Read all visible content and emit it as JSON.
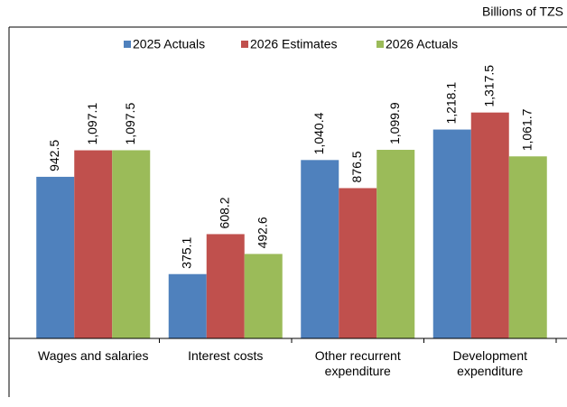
{
  "chart_data": {
    "type": "bar",
    "unit_label": "Billions of TZS",
    "categories": [
      "Wages and salaries",
      "Interest costs",
      "Other recurrent expenditure",
      "Development expenditure"
    ],
    "series": [
      {
        "name": "2025 Actuals",
        "color": "#4f81bd",
        "values": [
          942.5,
          375.1,
          1040.4,
          1218.1
        ],
        "value_labels": [
          "942.5",
          "375.1",
          "1,040.4",
          "1,218.1"
        ]
      },
      {
        "name": "2026 Estimates",
        "color": "#c0504d",
        "values": [
          1097.1,
          608.2,
          876.5,
          1317.5
        ],
        "value_labels": [
          "1,097.1",
          "608.2",
          "876.5",
          "1,317.5"
        ]
      },
      {
        "name": "2026 Actuals",
        "color": "#9bbb59",
        "values": [
          1097.5,
          492.6,
          1099.9,
          1061.7
        ],
        "value_labels": [
          "1,097.5",
          "492.6",
          "1,099.9",
          "1,061.7"
        ]
      }
    ],
    "ylim": [
      0,
      1400
    ],
    "legend": "top"
  }
}
